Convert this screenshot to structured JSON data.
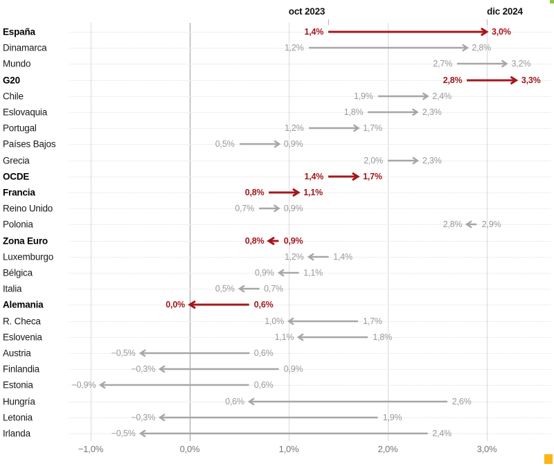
{
  "header": {
    "col_left": "oct 2023",
    "col_right": "dic 2024",
    "tick_values": [
      1.4,
      3.0
    ]
  },
  "axis": {
    "ticks": [
      {
        "label": "−1,0%",
        "value": -1.0
      },
      {
        "label": "0,0%",
        "value": 0.0
      },
      {
        "label": "1,0%",
        "value": 1.0
      },
      {
        "label": "2,0%",
        "value": 2.0
      },
      {
        "label": "3,0%",
        "value": 3.0
      }
    ]
  },
  "colors": {
    "highlight_red": "#a6161c",
    "gray_arrow": "#a6a6a6",
    "gray_label": "#999999",
    "corner_green": "#8dc63f",
    "corner_yellow": "#fbb615"
  },
  "chart_data": {
    "type": "arrow",
    "title": "",
    "xlabel": "",
    "ylabel": "",
    "x_start_header": "oct 2023",
    "x_end_header": "dic 2024",
    "xlim": [
      -1.45,
      3.65
    ],
    "grid": true,
    "units": "percent, decimal comma",
    "rows": [
      {
        "name": "España",
        "oct": 1.4,
        "dic": 3.0,
        "oct_label": "1,4%",
        "dic_label": "3,0%",
        "highlight": true
      },
      {
        "name": "Dinamarca",
        "oct": 1.2,
        "dic": 2.8,
        "oct_label": "1,2%",
        "dic_label": "2,8%",
        "highlight": false
      },
      {
        "name": "Mundo",
        "oct": 2.7,
        "dic": 3.2,
        "oct_label": "2,7%",
        "dic_label": "3,2%",
        "highlight": false
      },
      {
        "name": "G20",
        "oct": 2.8,
        "dic": 3.3,
        "oct_label": "2,8%",
        "dic_label": "3,3%",
        "highlight": true
      },
      {
        "name": "Chile",
        "oct": 1.9,
        "dic": 2.4,
        "oct_label": "1,9%",
        "dic_label": "2,4%",
        "highlight": false
      },
      {
        "name": "Eslovaquia",
        "oct": 1.8,
        "dic": 2.3,
        "oct_label": "1,8%",
        "dic_label": "2,3%",
        "highlight": false
      },
      {
        "name": "Portugal",
        "oct": 1.2,
        "dic": 1.7,
        "oct_label": "1,2%",
        "dic_label": "1,7%",
        "highlight": false
      },
      {
        "name": "Países Bajos",
        "oct": 0.5,
        "dic": 0.9,
        "oct_label": "0,5%",
        "dic_label": "0,9%",
        "highlight": false
      },
      {
        "name": "Grecia",
        "oct": 2.0,
        "dic": 2.3,
        "oct_label": "2,0%",
        "dic_label": "2,3%",
        "highlight": false
      },
      {
        "name": "OCDE",
        "oct": 1.4,
        "dic": 1.7,
        "oct_label": "1,4%",
        "dic_label": "1,7%",
        "highlight": true
      },
      {
        "name": "Francia",
        "oct": 0.8,
        "dic": 1.1,
        "oct_label": "0,8%",
        "dic_label": "1,1%",
        "highlight": true
      },
      {
        "name": "Reino Unido",
        "oct": 0.7,
        "dic": 0.9,
        "oct_label": "0,7%",
        "dic_label": "0,9%",
        "highlight": false
      },
      {
        "name": "Polonia",
        "oct": 2.9,
        "dic": 2.8,
        "oct_label": "2,9%",
        "dic_label": "2,8%",
        "highlight": false
      },
      {
        "name": "Zona Euro",
        "oct": 0.9,
        "dic": 0.8,
        "oct_label": "0,9%",
        "dic_label": "0,8%",
        "highlight": true
      },
      {
        "name": "Luxemburgo",
        "oct": 1.4,
        "dic": 1.2,
        "oct_label": "1,4%",
        "dic_label": "1,2%",
        "highlight": false
      },
      {
        "name": "Bélgica",
        "oct": 1.1,
        "dic": 0.9,
        "oct_label": "1,1%",
        "dic_label": "0,9%",
        "highlight": false
      },
      {
        "name": "Italia",
        "oct": 0.7,
        "dic": 0.5,
        "oct_label": "0,7%",
        "dic_label": "0,5%",
        "highlight": false
      },
      {
        "name": "Alemania",
        "oct": 0.6,
        "dic": 0.0,
        "oct_label": "0,6%",
        "dic_label": "0,0%",
        "highlight": true
      },
      {
        "name": "R. Checa",
        "oct": 1.7,
        "dic": 1.0,
        "oct_label": "1,7%",
        "dic_label": "1,0%",
        "highlight": false
      },
      {
        "name": "Eslovenia",
        "oct": 1.8,
        "dic": 1.1,
        "oct_label": "1,8%",
        "dic_label": "1,1%",
        "highlight": false
      },
      {
        "name": "Austria",
        "oct": 0.6,
        "dic": -0.5,
        "oct_label": "0,6%",
        "dic_label": "−0,5%",
        "highlight": false
      },
      {
        "name": "Finlandia",
        "oct": 0.9,
        "dic": -0.3,
        "oct_label": "0,9%",
        "dic_label": "−0,3%",
        "highlight": false
      },
      {
        "name": "Estonia",
        "oct": 0.6,
        "dic": -0.9,
        "oct_label": "0,6%",
        "dic_label": "−0,9%",
        "highlight": false
      },
      {
        "name": "Hungría",
        "oct": 2.6,
        "dic": 0.6,
        "oct_label": "2,6%",
        "dic_label": "0,6%",
        "highlight": false
      },
      {
        "name": "Letonia",
        "oct": 1.9,
        "dic": -0.3,
        "oct_label": "1,9%",
        "dic_label": "−0,3%",
        "highlight": false
      },
      {
        "name": "Irlanda",
        "oct": 2.4,
        "dic": -0.5,
        "oct_label": "2,4%",
        "dic_label": "−0,5%",
        "highlight": false
      }
    ]
  }
}
